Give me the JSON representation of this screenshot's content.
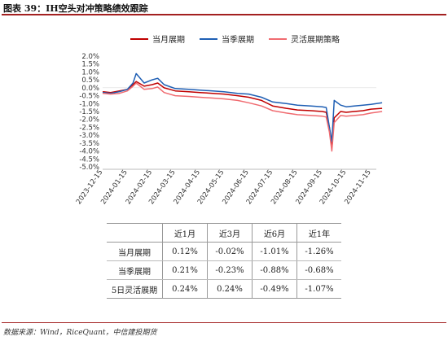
{
  "title": "图表 39：IH空头对冲策略绩效跟踪",
  "source": "数据来源：Wind，RiceQuant，中信建投期货",
  "chart_data": {
    "type": "line",
    "ylim": [
      -5.0,
      2.0
    ],
    "ytick_labels": [
      "2.0%",
      "1.5%",
      "1.0%",
      "0.5%",
      "0.0%",
      "-0.5%",
      "-1.0%",
      "-1.5%",
      "-2.0%",
      "-2.5%",
      "-3.0%",
      "-3.5%",
      "-4.0%",
      "-4.5%",
      "-5.0%"
    ],
    "x_dates": [
      "2023-12-15",
      "2024-01-15",
      "2024-02-15",
      "2024-03-15",
      "2024-04-15",
      "2024-05-15",
      "2024-06-15",
      "2024-07-15",
      "2024-08-15",
      "2024-09-15",
      "2024-10-15",
      "2024-11-15"
    ],
    "grid": false,
    "legend_position": "top",
    "series": [
      {
        "name": "当月展期",
        "color": "#c00000",
        "points": [
          [
            "2023-12-15",
            -0.25
          ],
          [
            "2023-12-25",
            -0.3
          ],
          [
            "2024-01-05",
            -0.2
          ],
          [
            "2024-01-15",
            -0.1
          ],
          [
            "2024-01-22",
            0.2
          ],
          [
            "2024-01-26",
            0.4
          ],
          [
            "2024-02-05",
            0.1
          ],
          [
            "2024-02-15",
            0.2
          ],
          [
            "2024-02-22",
            0.3
          ],
          [
            "2024-03-01",
            0.0
          ],
          [
            "2024-03-15",
            -0.2
          ],
          [
            "2024-04-01",
            -0.25
          ],
          [
            "2024-04-15",
            -0.3
          ],
          [
            "2024-05-01",
            -0.35
          ],
          [
            "2024-05-15",
            -0.4
          ],
          [
            "2024-06-01",
            -0.5
          ],
          [
            "2024-06-15",
            -0.6
          ],
          [
            "2024-07-01",
            -0.8
          ],
          [
            "2024-07-15",
            -1.15
          ],
          [
            "2024-08-01",
            -1.3
          ],
          [
            "2024-08-15",
            -1.4
          ],
          [
            "2024-09-01",
            -1.45
          ],
          [
            "2024-09-15",
            -1.5
          ],
          [
            "2024-09-20",
            -1.55
          ],
          [
            "2024-09-24",
            -2.5
          ],
          [
            "2024-09-27",
            -3.7
          ],
          [
            "2024-09-30",
            -1.9
          ],
          [
            "2024-10-08",
            -1.5
          ],
          [
            "2024-10-15",
            -1.55
          ],
          [
            "2024-10-25",
            -1.5
          ],
          [
            "2024-11-05",
            -1.45
          ],
          [
            "2024-11-15",
            -1.35
          ],
          [
            "2024-11-29",
            -1.3
          ]
        ]
      },
      {
        "name": "当季展期",
        "color": "#1f5fb4",
        "points": [
          [
            "2023-12-15",
            -0.3
          ],
          [
            "2023-12-25",
            -0.35
          ],
          [
            "2024-01-05",
            -0.25
          ],
          [
            "2024-01-15",
            -0.1
          ],
          [
            "2024-01-22",
            0.3
          ],
          [
            "2024-01-26",
            0.9
          ],
          [
            "2024-02-05",
            0.3
          ],
          [
            "2024-02-15",
            0.5
          ],
          [
            "2024-02-22",
            0.6
          ],
          [
            "2024-03-01",
            0.2
          ],
          [
            "2024-03-15",
            -0.05
          ],
          [
            "2024-04-01",
            -0.1
          ],
          [
            "2024-04-15",
            -0.15
          ],
          [
            "2024-05-01",
            -0.2
          ],
          [
            "2024-05-15",
            -0.25
          ],
          [
            "2024-06-01",
            -0.35
          ],
          [
            "2024-06-15",
            -0.4
          ],
          [
            "2024-07-01",
            -0.6
          ],
          [
            "2024-07-15",
            -0.9
          ],
          [
            "2024-08-01",
            -1.0
          ],
          [
            "2024-08-15",
            -1.1
          ],
          [
            "2024-09-01",
            -1.15
          ],
          [
            "2024-09-15",
            -1.2
          ],
          [
            "2024-09-20",
            -1.25
          ],
          [
            "2024-09-24",
            -2.5
          ],
          [
            "2024-09-27",
            -3.4
          ],
          [
            "2024-09-30",
            -0.8
          ],
          [
            "2024-10-08",
            -1.1
          ],
          [
            "2024-10-15",
            -1.2
          ],
          [
            "2024-10-25",
            -1.15
          ],
          [
            "2024-11-05",
            -1.1
          ],
          [
            "2024-11-15",
            -1.05
          ],
          [
            "2024-11-29",
            -0.95
          ]
        ]
      },
      {
        "name": "灵活展期策略",
        "color": "#f06b70",
        "points": [
          [
            "2023-12-15",
            -0.35
          ],
          [
            "2023-12-25",
            -0.4
          ],
          [
            "2024-01-05",
            -0.35
          ],
          [
            "2024-01-15",
            -0.2
          ],
          [
            "2024-01-22",
            0.1
          ],
          [
            "2024-01-26",
            0.3
          ],
          [
            "2024-02-05",
            -0.1
          ],
          [
            "2024-02-15",
            -0.05
          ],
          [
            "2024-02-22",
            0.05
          ],
          [
            "2024-03-01",
            -0.3
          ],
          [
            "2024-03-15",
            -0.5
          ],
          [
            "2024-04-01",
            -0.55
          ],
          [
            "2024-04-15",
            -0.6
          ],
          [
            "2024-05-01",
            -0.65
          ],
          [
            "2024-05-15",
            -0.7
          ],
          [
            "2024-06-01",
            -0.8
          ],
          [
            "2024-06-15",
            -0.95
          ],
          [
            "2024-07-01",
            -1.15
          ],
          [
            "2024-07-15",
            -1.45
          ],
          [
            "2024-08-01",
            -1.6
          ],
          [
            "2024-08-15",
            -1.7
          ],
          [
            "2024-09-01",
            -1.75
          ],
          [
            "2024-09-15",
            -1.8
          ],
          [
            "2024-09-20",
            -1.85
          ],
          [
            "2024-09-24",
            -2.8
          ],
          [
            "2024-09-27",
            -4.0
          ],
          [
            "2024-09-30",
            -2.2
          ],
          [
            "2024-10-08",
            -1.75
          ],
          [
            "2024-10-15",
            -1.8
          ],
          [
            "2024-10-25",
            -1.75
          ],
          [
            "2024-11-05",
            -1.7
          ],
          [
            "2024-11-15",
            -1.6
          ],
          [
            "2024-11-29",
            -1.5
          ]
        ]
      }
    ]
  },
  "table": {
    "corner": "",
    "headers": [
      "近1月",
      "近3月",
      "近6月",
      "近1年"
    ],
    "rows": [
      {
        "label": "当月展期",
        "values": [
          "0.12%",
          "-0.02%",
          "-1.01%",
          "-1.26%"
        ]
      },
      {
        "label": "当季展期",
        "values": [
          "0.21%",
          "-0.23%",
          "-0.88%",
          "-0.68%"
        ]
      },
      {
        "label": "5日灵活展期",
        "values": [
          "0.24%",
          "0.24%",
          "-0.49%",
          "-1.07%"
        ]
      }
    ]
  }
}
